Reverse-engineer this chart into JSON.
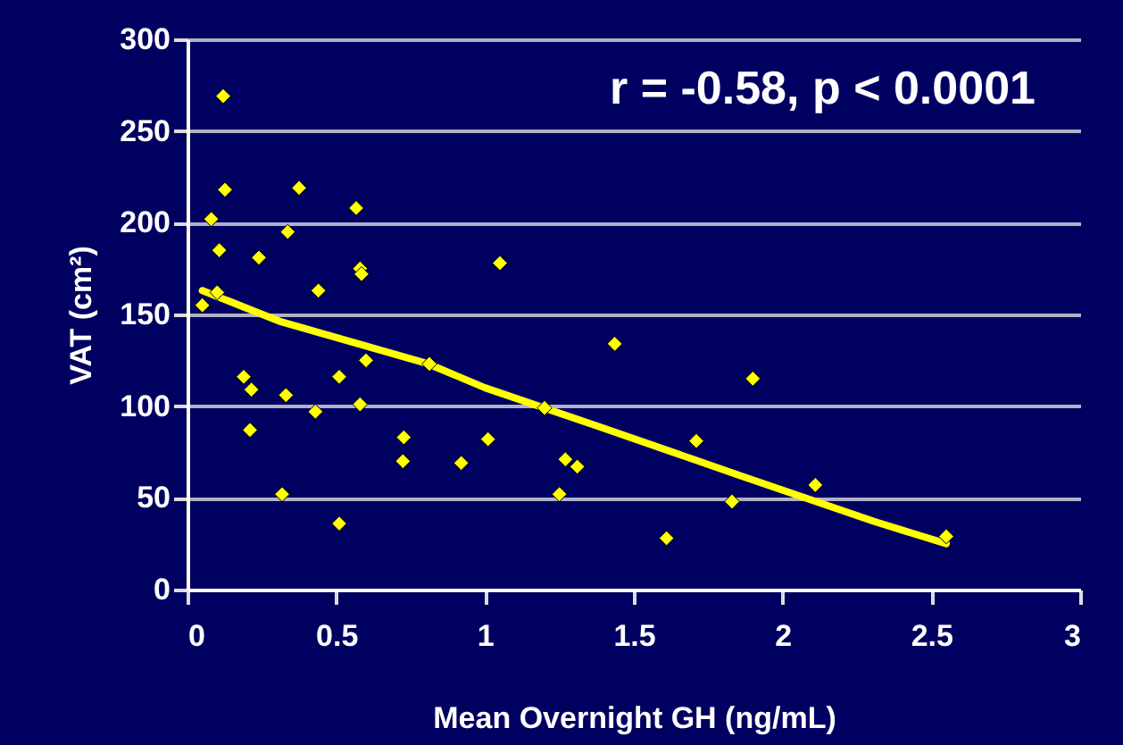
{
  "chart_data": {
    "type": "scatter",
    "xlabel": "Mean Overnight GH (ng/mL)",
    "ylabel": "VAT (cm²)",
    "annotations": [
      "r = -0.58, p < 0.0001"
    ],
    "xlim": [
      0,
      3
    ],
    "xticks": [
      0,
      0.5,
      1,
      1.5,
      2,
      2.5,
      3
    ],
    "ylim": [
      0,
      300
    ],
    "yticks": [
      0,
      50,
      100,
      150,
      200,
      250,
      300
    ],
    "grid": "y",
    "series": [
      {
        "color": "#ffff00",
        "marker": "diamond",
        "x": [
          0.12,
          0.126,
          0.08,
          0.107,
          0.1,
          0.05,
          0.375,
          0.337,
          0.24,
          0.44,
          0.567,
          0.58,
          0.585,
          1.05,
          0.189,
          0.215,
          0.21,
          0.331,
          0.318,
          0.43,
          0.51,
          0.51,
          0.58,
          0.6,
          0.727,
          0.724,
          0.92,
          1.01,
          0.813,
          1.436,
          1.9,
          1.2,
          1.71,
          1.27,
          1.31,
          1.25,
          2.11,
          1.83,
          1.61,
          2.55
        ],
        "values": [
          269,
          218,
          202,
          185,
          162,
          155,
          219,
          195,
          181,
          163,
          208,
          175,
          172,
          178,
          116,
          109,
          87,
          106,
          52,
          97,
          116,
          36,
          101,
          125,
          83,
          70,
          69,
          82,
          123,
          134,
          115,
          99,
          81,
          71,
          67,
          52,
          57,
          48,
          28,
          29
        ]
      },
      {
        "type": "line",
        "marker": "none",
        "color": "#ffff00",
        "x": [
          0.05,
          0.314,
          0.81,
          1.0,
          1.38,
          1.86,
          2.31,
          2.55
        ],
        "values": [
          163,
          146,
          123,
          110,
          89,
          62,
          37,
          25
        ]
      }
    ]
  }
}
